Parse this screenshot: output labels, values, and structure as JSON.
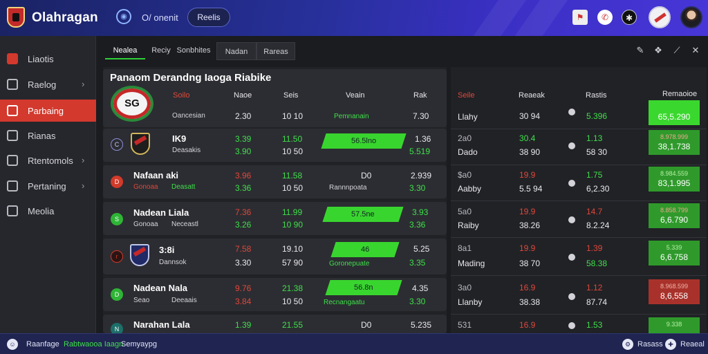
{
  "app": {
    "brand": "Olahragan"
  },
  "topbar": {
    "link": "O/ onenit",
    "button": "Reelis",
    "icons": [
      "flag-icon",
      "notification-icon",
      "settings-icon",
      "team-badge-icon"
    ]
  },
  "sidebar": {
    "items": [
      {
        "label": "Liaotis",
        "icon": "home-icon",
        "chevron": false,
        "active": false
      },
      {
        "label": "Raelog",
        "icon": "doc-icon",
        "chevron": true,
        "active": false
      },
      {
        "label": "Parbaing",
        "icon": "gear-icon",
        "chevron": false,
        "active": true
      },
      {
        "label": "Rianas",
        "icon": "bird-icon",
        "chevron": false,
        "active": false
      },
      {
        "label": "Rtentomols",
        "icon": "trophy-icon",
        "chevron": true,
        "active": false
      },
      {
        "label": "Pertaning",
        "icon": "chart-icon",
        "chevron": true,
        "active": false
      },
      {
        "label": "Meolia",
        "icon": "media-icon",
        "chevron": false,
        "active": false
      }
    ]
  },
  "tabs": [
    "Nealea",
    "Reciy",
    "Sonbhites",
    "Nadan",
    "Rareas"
  ],
  "tools": [
    "edit-icon",
    "share-icon",
    "pen-icon",
    "close-icon"
  ],
  "left_panel": {
    "title": "Panaom Derandng Iaoga Riabike",
    "headers": [
      "Soilo",
      "Naoe",
      "Seis",
      "Veain",
      "Rak"
    ],
    "rows": [
      {
        "logo_text": "SG",
        "name": "",
        "sub": "Oancesian",
        "v1": "2.30",
        "v2": "10 10",
        "mid_label": "Pemnanain",
        "mid_pill": "",
        "v4": "7.30",
        "v4b": ""
      },
      {
        "name": "IK9",
        "sub": "Deasakis",
        "v1": "3.39",
        "v1b": "3.90",
        "v2": "11.50",
        "v2b": "10 50",
        "mid_label": "",
        "mid_pill": "56.5lno",
        "v4": "1.36",
        "v4b": "5.519"
      },
      {
        "name": "Nafaan aki",
        "sub": "Gonoaa",
        "sub2": "Deasatt",
        "v1": "3.96",
        "v1b": "3.36",
        "v2": "11.58",
        "v2b": "10 50",
        "mid_label": "Rannnpoata",
        "mid_pill": "D0",
        "v4": "2.939",
        "v4b": "3.30"
      },
      {
        "name": "Nadean Liala",
        "sub": "Gonoaa",
        "sub2": "Neceastl",
        "v1": "7.36",
        "v1b": "3.26",
        "v2": "11.99",
        "v2b": "10 90",
        "mid_label": "",
        "mid_pill": "57.5ne",
        "v4": "3.93",
        "v4b": "3.36"
      },
      {
        "name": "3:8i",
        "sub": "Dannsok",
        "v1": "7.58",
        "v1b": "3.30",
        "v2": "19.10",
        "v2b": "57 90",
        "mid_label": "Goronepuate",
        "mid_pill": "46",
        "v4": "5.25",
        "v4b": "3.35"
      },
      {
        "name": "Nadean Nala",
        "sub": "Seao",
        "sub2": "Deeaais",
        "v1": "9.76",
        "v1b": "3.84",
        "v2": "21.38",
        "v2b": "10 50",
        "mid_label": "Recnangaatu",
        "mid_pill": "56.8n",
        "v4": "4.35",
        "v4b": "3.30"
      },
      {
        "name": "Narahan Lala",
        "sub": "",
        "v1": "1.39",
        "v2": "21.55",
        "mid_label": "",
        "mid_pill": "D0",
        "v4": "5.235",
        "v4b": ""
      }
    ]
  },
  "right_panel": {
    "headers": [
      "Seile",
      "Reaeak",
      "Rastis",
      "Remaoioe"
    ],
    "rows": [
      {
        "name": "Llahy",
        "a": "30 94",
        "b": "5.396",
        "box_top": "",
        "box": "65,5.290",
        "box_style": "bright",
        "a_color": "white",
        "b_color": "green"
      },
      {
        "name": "Dado",
        "name_top": "2a0",
        "a": "38 90",
        "a_top": "30.4",
        "b": "58 30",
        "b_top": "1.13",
        "box_top": "8.978.999",
        "box": "38,1.738",
        "box_style": "mid",
        "a_color": "green",
        "b_color": "green"
      },
      {
        "name": "Aabby",
        "name_top": "$a0",
        "a": "5.5 94",
        "a_top": "19.9",
        "b": "6,2.30",
        "b_top": "1.75",
        "box_top": "8.984.559",
        "box": "83,1.995",
        "box_style": "mid",
        "a_color": "red",
        "b_color": "green"
      },
      {
        "name": "Raiby",
        "name_top": "5a0",
        "a": "38.26",
        "a_top": "19.9",
        "b": "8.2.24",
        "b_top": "14.7",
        "box_top": "8.858.799",
        "box": "6,6.790",
        "box_style": "mid",
        "a_color": "red",
        "b_color": "red"
      },
      {
        "name": "Mading",
        "name_top": "8a1",
        "a": "38 70",
        "a_top": "19.9",
        "b": "58.38",
        "b_top": "1.39",
        "box_top": "5.339",
        "box": "6,6.758",
        "box_style": "mid",
        "a_color": "red",
        "b_color": "red"
      },
      {
        "name": "Llanby",
        "name_top": "3a0",
        "a": "38.38",
        "a_top": "16.9",
        "b": "87.74",
        "b_top": "1.12",
        "box_top": "8.968.599",
        "box": "8,6,558",
        "box_style": "red",
        "a_color": "red",
        "b_color": "red"
      },
      {
        "name": "",
        "name_top": "531",
        "a": "",
        "a_top": "16.9",
        "b": "",
        "b_top": "1.53",
        "box_top": "9.338",
        "box": "",
        "box_style": "mid",
        "a_color": "red",
        "b_color": "green"
      }
    ]
  },
  "bottombar": {
    "items": [
      "Raanfage",
      "Rabtwaooa Iaagn",
      "Semyaypg"
    ],
    "right": [
      "Rasass",
      "Reaeal"
    ]
  }
}
